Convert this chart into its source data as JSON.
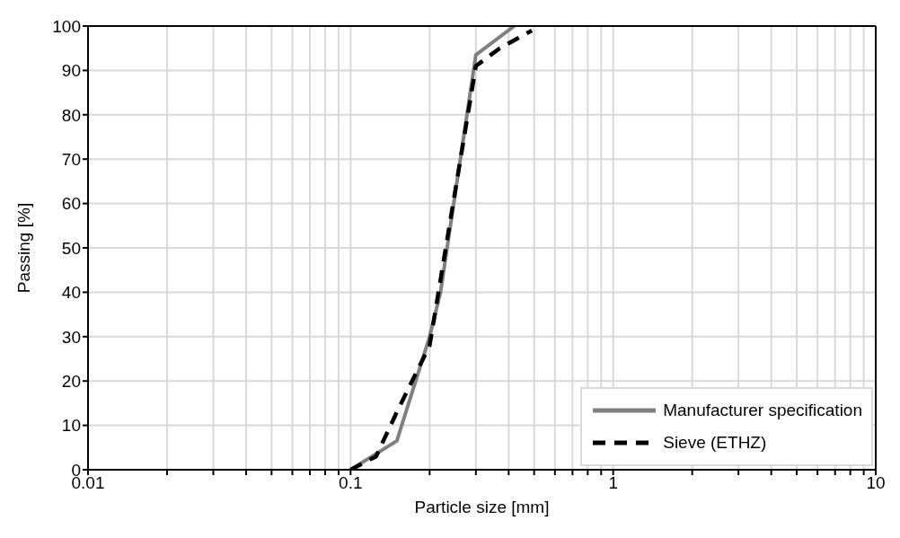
{
  "chart_data": {
    "type": "line",
    "xlabel": "Particle size [mm]",
    "ylabel": "Passing [%]",
    "log": "x",
    "xlim": [
      0.01,
      10
    ],
    "ylim": [
      0,
      100
    ],
    "xticks": [
      0.01,
      {
        "value": 0.02,
        "label": null
      },
      {
        "value": 0.03,
        "label": null
      },
      {
        "value": 0.04,
        "label": null
      },
      {
        "value": 0.05,
        "label": null
      },
      {
        "value": 0.06,
        "label": null
      },
      {
        "value": 0.07,
        "label": null
      },
      {
        "value": 0.08,
        "label": null
      },
      {
        "value": 0.09,
        "label": null
      },
      0.1,
      {
        "value": 0.2,
        "label": null
      },
      {
        "value": 0.3,
        "label": null
      },
      {
        "value": 0.4,
        "label": null
      },
      {
        "value": 0.5,
        "label": null
      },
      {
        "value": 0.6,
        "label": null
      },
      {
        "value": 0.7,
        "label": null
      },
      {
        "value": 0.8,
        "label": null
      },
      {
        "value": 0.9,
        "label": null
      },
      1,
      {
        "value": 2,
        "label": null
      },
      {
        "value": 3,
        "label": null
      },
      {
        "value": 4,
        "label": null
      },
      {
        "value": 5,
        "label": null
      },
      {
        "value": 6,
        "label": null
      },
      {
        "value": 7,
        "label": null
      },
      {
        "value": 8,
        "label": null
      },
      {
        "value": 9,
        "label": null
      },
      10
    ],
    "yticks": [
      0,
      10,
      20,
      30,
      40,
      50,
      60,
      70,
      80,
      90,
      100
    ],
    "grid": true,
    "legend": "bottom right",
    "marker": "none",
    "series": [
      {
        "name": "Manufacturer specification",
        "color": "#808080",
        "line_style": "solid",
        "x": [
          0.1,
          0.15,
          0.2,
          0.22,
          0.3,
          0.42
        ],
        "values": [
          0,
          6.5,
          30,
          40,
          93.5,
          100
        ]
      },
      {
        "name": "Sieve (ETHZ)",
        "color": "#000000",
        "line_style": "dashed",
        "x": [
          0.1,
          0.125,
          0.15,
          0.2,
          0.3,
          0.37,
          0.49
        ],
        "values": [
          0,
          3,
          13,
          28,
          91,
          95,
          99
        ]
      }
    ]
  }
}
